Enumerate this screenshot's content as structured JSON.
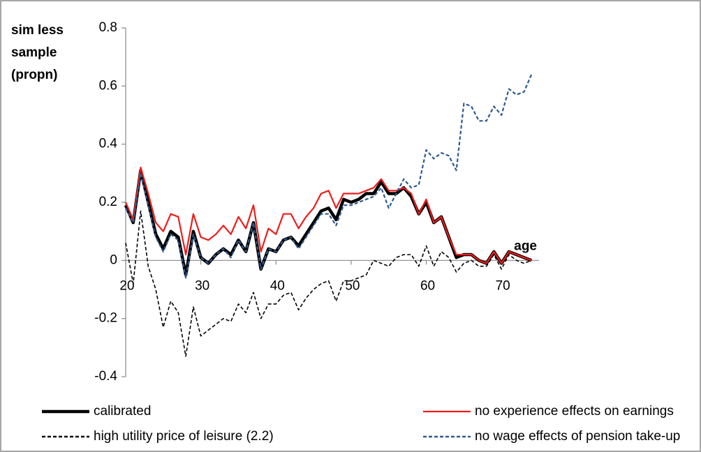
{
  "chart_data": {
    "type": "line",
    "y_label": "sim less sample (propn)",
    "x_label": "age",
    "x": [
      20,
      21,
      22,
      23,
      24,
      25,
      26,
      27,
      28,
      29,
      30,
      31,
      32,
      33,
      34,
      35,
      36,
      37,
      38,
      39,
      40,
      41,
      42,
      43,
      44,
      45,
      46,
      47,
      48,
      49,
      50,
      51,
      52,
      53,
      54,
      55,
      56,
      57,
      58,
      59,
      60,
      61,
      62,
      63,
      64,
      65,
      66,
      67,
      68,
      69,
      70,
      71,
      72,
      73,
      74
    ],
    "xlim": [
      20,
      75
    ],
    "xticks": [
      20,
      30,
      40,
      50,
      60,
      70
    ],
    "ylim": [
      -0.4,
      0.8
    ],
    "yticks": [
      -0.4,
      -0.2,
      0,
      0.2,
      0.4,
      0.6,
      0.8
    ],
    "series": [
      {
        "name": "calibrated",
        "color": "#000000",
        "width": 4.5,
        "style": "solid",
        "values": [
          0.19,
          0.13,
          0.31,
          0.2,
          0.09,
          0.04,
          0.1,
          0.08,
          -0.05,
          0.1,
          0.01,
          -0.01,
          0.02,
          0.04,
          0.02,
          0.07,
          0.03,
          0.13,
          -0.03,
          0.04,
          0.03,
          0.07,
          0.08,
          0.05,
          0.09,
          0.13,
          0.17,
          0.18,
          0.14,
          0.21,
          0.2,
          0.21,
          0.23,
          0.23,
          0.27,
          0.23,
          0.23,
          0.25,
          0.22,
          0.16,
          0.2,
          0.13,
          0.15,
          0.08,
          0.01,
          0.02,
          0.02,
          0,
          -0.01,
          0.03,
          -0.01,
          0.03,
          0.02,
          0.01,
          0
        ]
      },
      {
        "name": "no experience effects on earnings",
        "color": "#ee1c1c",
        "width": 2.2,
        "style": "solid",
        "values": [
          0.2,
          0.14,
          0.32,
          0.23,
          0.13,
          0.1,
          0.16,
          0.15,
          0.02,
          0.16,
          0.08,
          0.07,
          0.09,
          0.12,
          0.09,
          0.15,
          0.11,
          0.19,
          0.03,
          0.11,
          0.09,
          0.16,
          0.16,
          0.11,
          0.15,
          0.18,
          0.23,
          0.24,
          0.18,
          0.23,
          0.23,
          0.23,
          0.24,
          0.25,
          0.28,
          0.24,
          0.24,
          0.25,
          0.23,
          0.16,
          0.21,
          0.13,
          0.15,
          0.08,
          0.02,
          0.02,
          0.02,
          0,
          -0.01,
          0.03,
          -0.01,
          0.03,
          0.02,
          0.01,
          0
        ]
      },
      {
        "name": "high utility price of leisure (2.2)",
        "color": "#000000",
        "width": 1.6,
        "style": "dashed",
        "values": [
          0.06,
          -0.08,
          0.17,
          -0.02,
          -0.1,
          -0.23,
          -0.14,
          -0.18,
          -0.33,
          -0.16,
          -0.26,
          -0.24,
          -0.22,
          -0.2,
          -0.21,
          -0.15,
          -0.18,
          -0.11,
          -0.2,
          -0.15,
          -0.15,
          -0.12,
          -0.11,
          -0.17,
          -0.13,
          -0.1,
          -0.08,
          -0.07,
          -0.14,
          -0.07,
          -0.07,
          -0.06,
          -0.05,
          0,
          -0.01,
          -0.02,
          0.01,
          0.02,
          0.02,
          -0.02,
          0.05,
          -0.02,
          0.03,
          0.01,
          -0.04,
          -0.01,
          0,
          -0.02,
          -0.02,
          0.02,
          -0.03,
          0.02,
          0,
          -0.01,
          0
        ]
      },
      {
        "name": "no wage effects of pension take-up",
        "color": "#2e5a8e",
        "width": 2.2,
        "style": "dashed",
        "values": [
          0.18,
          0.13,
          0.3,
          0.19,
          0.08,
          0.03,
          0.09,
          0.07,
          -0.06,
          0.09,
          0.01,
          -0.01,
          0.02,
          0.04,
          0.01,
          0.07,
          0.03,
          0.13,
          -0.03,
          0.04,
          0.03,
          0.07,
          0.08,
          0.04,
          0.08,
          0.12,
          0.16,
          0.16,
          0.12,
          0.19,
          0.19,
          0.2,
          0.21,
          0.22,
          0.25,
          0.18,
          0.23,
          0.28,
          0.25,
          0.26,
          0.38,
          0.35,
          0.37,
          0.36,
          0.31,
          0.54,
          0.53,
          0.48,
          0.48,
          0.53,
          0.5,
          0.59,
          0.57,
          0.58,
          0.64
        ]
      }
    ]
  }
}
